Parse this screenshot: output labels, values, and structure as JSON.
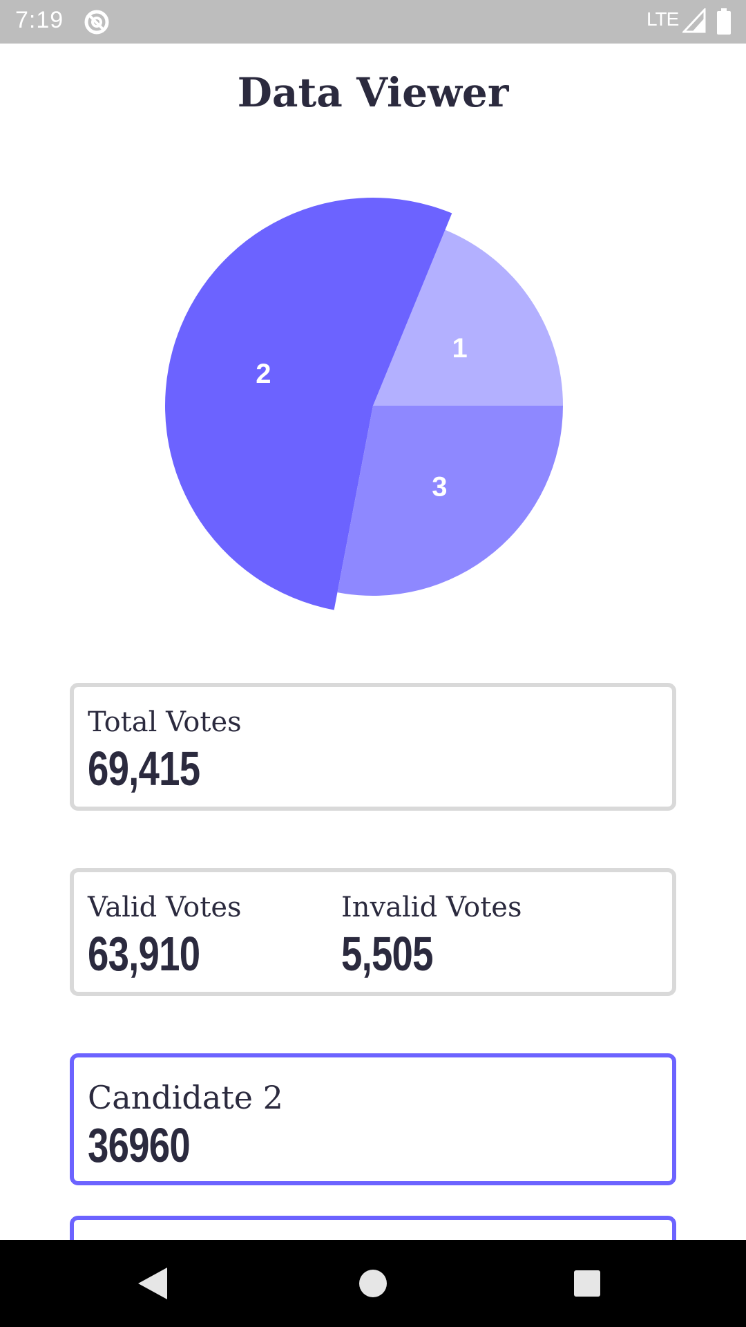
{
  "status_bar": {
    "time": "7:19",
    "network": "LTE",
    "icons": [
      "app-notification-icon",
      "signal-icon",
      "battery-icon"
    ]
  },
  "page": {
    "title": "Data Viewer"
  },
  "colors": {
    "accent": "#6c63ff",
    "slice_1": "#b3b0ff",
    "slice_2": "#6c63ff",
    "slice_3": "#8e88ff",
    "card_border": "#d9d9d9",
    "text": "#2b2a3e"
  },
  "chart_data": {
    "type": "pie",
    "slices": [
      {
        "label": "1",
        "value": 0.188,
        "color": "#b3b0ff"
      },
      {
        "label": "2",
        "value": 0.532,
        "color": "#6c63ff"
      },
      {
        "label": "3",
        "value": 0.28,
        "color": "#8e88ff"
      }
    ],
    "exploded_slice": "2",
    "title": "",
    "legend": "none"
  },
  "cards": {
    "total": {
      "label": "Total Votes",
      "value": "69,415"
    },
    "valid": {
      "label": "Valid Votes",
      "value": "63,910"
    },
    "invalid": {
      "label": "Invalid Votes",
      "value": "5,505"
    },
    "candidate_2": {
      "label": "Candidate 2",
      "value": "36960"
    }
  },
  "nav": {
    "buttons": [
      "back-icon",
      "home-icon",
      "recents-icon"
    ]
  }
}
